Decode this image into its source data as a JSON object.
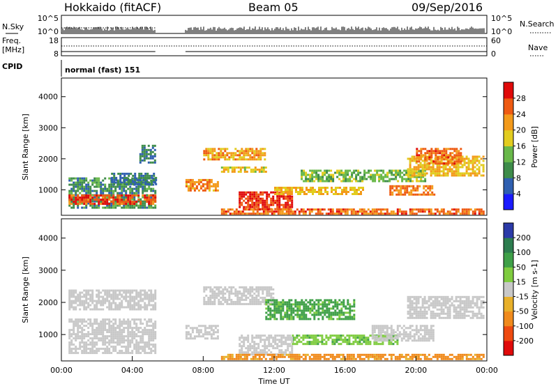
{
  "header": {
    "station": "Hokkaido (fitACF)",
    "beam": "Beam 05",
    "date": "09/Sep/2016"
  },
  "status_panels": {
    "nsky_label": "N.Sky",
    "nsky_ticks": [
      "10^5",
      "10^0"
    ],
    "nsearch_label": "N.Search",
    "freq_label": "Freq.",
    "freq_unit": "[MHz]",
    "freq_ticks": [
      "18",
      "8"
    ],
    "nave_label": "Nave",
    "nave_ticks": [
      "60",
      "0"
    ],
    "cpid_label": "CPID",
    "cpid_text": "normal (fast) 151"
  },
  "chart_data": [
    {
      "type": "heatmap",
      "name": "power",
      "ylabel": "Slant Range [km]",
      "xlabel": "Time UT",
      "xlim_hours": [
        0,
        24
      ],
      "ylim_km": [
        180,
        4600
      ],
      "x_ticks": [
        "00:00",
        "04:00",
        "08:00",
        "12:00",
        "16:00",
        "20:00",
        "00:00"
      ],
      "y_ticks": [
        "1000",
        "2000",
        "3000",
        "4000"
      ],
      "colorbar_label": "Power [dB]",
      "colorbar_ticks": [
        "4",
        "8",
        "12",
        "16",
        "20",
        "24",
        "28"
      ],
      "colorbar_colors": [
        "#1a1aff",
        "#2f5fb0",
        "#3e8c4a",
        "#69b84a",
        "#e2cc1f",
        "#f39a1a",
        "#ee5a12",
        "#e00a0a"
      ],
      "colorbar_range": [
        0,
        32
      ],
      "regions": [
        {
          "t": [
            0.4,
            5.3
          ],
          "r": [
            400,
            1400
          ],
          "v": 10
        },
        {
          "t": [
            0.4,
            5.3
          ],
          "r": [
            550,
            850
          ],
          "v": 27
        },
        {
          "t": [
            2.8,
            5.3
          ],
          "r": [
            1150,
            1550
          ],
          "v": 8
        },
        {
          "t": [
            4.4,
            5.3
          ],
          "r": [
            1900,
            2450
          ],
          "v": 8
        },
        {
          "t": [
            7.0,
            8.8
          ],
          "r": [
            950,
            1350
          ],
          "v": 23
        },
        {
          "t": [
            8.0,
            11.5
          ],
          "r": [
            1950,
            2350
          ],
          "v": 22
        },
        {
          "t": [
            9.0,
            11.5
          ],
          "r": [
            1600,
            1750
          ],
          "v": 18
        },
        {
          "t": [
            10.0,
            13.0
          ],
          "r": [
            400,
            950
          ],
          "v": 28
        },
        {
          "t": [
            12.0,
            17.0
          ],
          "r": [
            850,
            1100
          ],
          "v": 20
        },
        {
          "t": [
            13.5,
            20.5
          ],
          "r": [
            1300,
            1650
          ],
          "v": 14
        },
        {
          "t": [
            9.0,
            23.8
          ],
          "r": [
            250,
            400
          ],
          "v": 25
        },
        {
          "t": [
            18.5,
            21.0
          ],
          "r": [
            850,
            1150
          ],
          "v": 24
        },
        {
          "t": [
            19.5,
            23.8
          ],
          "r": [
            1450,
            2100
          ],
          "v": 20
        },
        {
          "t": [
            20.0,
            22.5
          ],
          "r": [
            1850,
            2350
          ],
          "v": 25
        }
      ]
    },
    {
      "type": "heatmap",
      "name": "velocity",
      "ylabel": "Slant Range [km]",
      "xlabel": "Time UT",
      "xlim_hours": [
        0,
        24
      ],
      "ylim_km": [
        180,
        4600
      ],
      "x_ticks": [
        "00:00",
        "04:00",
        "08:00",
        "12:00",
        "16:00",
        "20:00",
        "00:00"
      ],
      "y_ticks": [
        "1000",
        "2000",
        "3000",
        "4000"
      ],
      "colorbar_label": "Velocity [m s-1]",
      "colorbar_ticks": [
        "200",
        "100",
        "50",
        "15",
        "-15",
        "-50",
        "-100",
        "-200"
      ],
      "colorbar_colors": [
        "#2b3aa8",
        "#2d7d4f",
        "#3fa048",
        "#7fcc3f",
        "#c8c8c8",
        "#e8b02a",
        "#f08a1c",
        "#ee4a10",
        "#e00a0a"
      ],
      "regions": [
        {
          "t": [
            0.4,
            5.3
          ],
          "r": [
            400,
            1500
          ],
          "v": 0
        },
        {
          "t": [
            0.4,
            5.3
          ],
          "r": [
            1800,
            2400
          ],
          "v": 0
        },
        {
          "t": [
            7.0,
            8.8
          ],
          "r": [
            900,
            1300
          ],
          "v": 0
        },
        {
          "t": [
            8.0,
            12.0
          ],
          "r": [
            1950,
            2500
          ],
          "v": 0
        },
        {
          "t": [
            11.5,
            16.5
          ],
          "r": [
            1500,
            2100
          ],
          "v": 60
        },
        {
          "t": [
            13.0,
            19.0
          ],
          "r": [
            700,
            1000
          ],
          "v": 40
        },
        {
          "t": [
            10.0,
            13.0
          ],
          "r": [
            400,
            1000
          ],
          "v": 0
        },
        {
          "t": [
            9.0,
            23.8
          ],
          "r": [
            250,
            400
          ],
          "v": -60
        },
        {
          "t": [
            17.5,
            21.0
          ],
          "r": [
            800,
            1300
          ],
          "v": 0
        },
        {
          "t": [
            19.5,
            23.8
          ],
          "r": [
            1500,
            2200
          ],
          "v": 0
        }
      ]
    }
  ]
}
